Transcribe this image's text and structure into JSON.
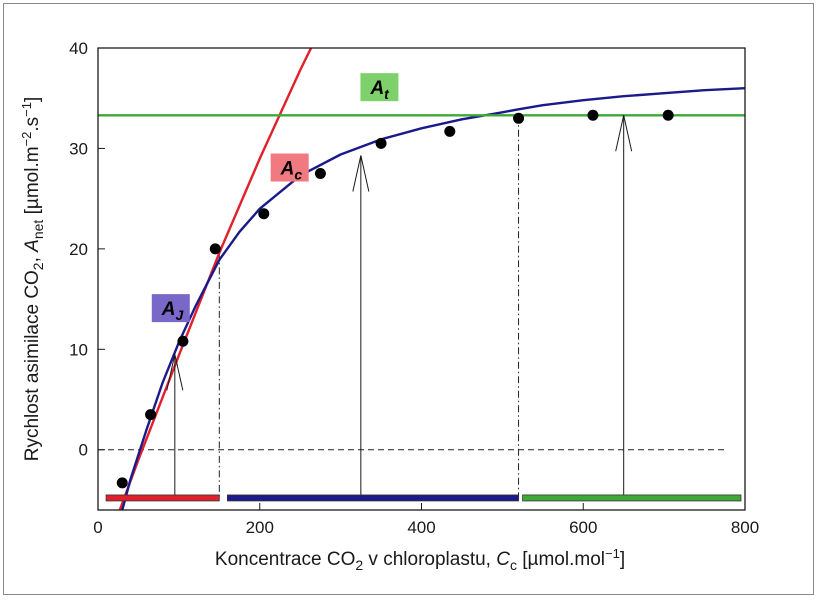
{
  "chart_data": {
    "type": "line",
    "title": "",
    "xlabel": {
      "main": "Koncentrace CO",
      "sub": "2",
      "mid": " v chloroplastu, ",
      "var": "C",
      "var_sub": "c",
      "unit": " [µmol.mol",
      "unit_sup": "−1",
      "unit_end": "]"
    },
    "ylabel": {
      "main": "Rychlost asimilace CO",
      "sub": "2",
      "mid": ", ",
      "var": "A",
      "var_sub": "net",
      "unit": " [µmol.m",
      "unit_sup1": "−2",
      "unit_mid": ".s",
      "unit_sup2": "−1",
      "unit_end": "]"
    },
    "xlim": [
      0,
      800
    ],
    "ylim": [
      -6,
      40
    ],
    "x_ticks": [
      0,
      200,
      400,
      600,
      800
    ],
    "y_ticks": [
      0,
      10,
      20,
      30,
      40
    ],
    "grid": false,
    "series": [
      {
        "name": "A_c",
        "label_main": "A",
        "label_sub": "c",
        "color": "#e0202a",
        "label_bg": "#f07a80",
        "label_at": [
          237,
          28
        ],
        "points": [
          [
            27,
            -6
          ],
          [
            50,
            -1
          ],
          [
            100,
            9.4
          ],
          [
            150,
            19.6
          ],
          [
            200,
            29
          ],
          [
            250,
            37.8
          ],
          [
            300,
            46
          ]
        ]
      },
      {
        "name": "A_J",
        "label_main": "A",
        "label_sub": "J",
        "color": "#1a1a8a",
        "label_bg": "#7a68c8",
        "label_at": [
          90,
          14
        ],
        "points": [
          [
            30,
            -6
          ],
          [
            40,
            -3
          ],
          [
            60,
            2
          ],
          [
            80,
            6.7
          ],
          [
            100,
            10.7
          ],
          [
            120,
            14.2
          ],
          [
            150,
            18.9
          ],
          [
            175,
            21.7
          ],
          [
            200,
            24
          ],
          [
            250,
            27.3
          ],
          [
            300,
            29.4
          ],
          [
            350,
            30.9
          ],
          [
            400,
            32
          ],
          [
            450,
            32.9
          ],
          [
            500,
            33.6
          ],
          [
            520,
            33.9
          ],
          [
            550,
            34.3
          ],
          [
            600,
            34.8
          ],
          [
            650,
            35.2
          ],
          [
            700,
            35.5
          ],
          [
            750,
            35.8
          ],
          [
            800,
            36
          ]
        ]
      },
      {
        "name": "A_t",
        "label_main": "A",
        "label_sub": "t",
        "color": "#3ea838",
        "label_bg": "#7ed06a",
        "label_at": [
          348,
          36
        ],
        "points": [
          [
            0,
            33.3
          ],
          [
            800,
            33.3
          ]
        ]
      }
    ],
    "measured_points": [
      [
        30,
        -3.3
      ],
      [
        65,
        3.5
      ],
      [
        105,
        10.8
      ],
      [
        145,
        20
      ],
      [
        205,
        23.5
      ],
      [
        275,
        27.5
      ],
      [
        350,
        30.5
      ],
      [
        435,
        31.7
      ],
      [
        520,
        33
      ],
      [
        612,
        33.3
      ],
      [
        705,
        33.3
      ]
    ],
    "zero_line": 0,
    "transitions": [
      150,
      520
    ],
    "arrows": [
      {
        "x": 95,
        "y_from": -4.5,
        "y_to": 9.5
      },
      {
        "x": 325,
        "y_from": -4.5,
        "y_to": 29.3
      },
      {
        "x": 650,
        "y_from": -4.5,
        "y_to": 33.3
      }
    ],
    "limitation_bars": [
      {
        "x_from": 10,
        "x_to": 150,
        "color": "#e0202a"
      },
      {
        "x_from": 160,
        "x_to": 520,
        "color": "#1a1a8a"
      },
      {
        "x_from": 525,
        "x_to": 795,
        "color": "#3ea838"
      }
    ]
  }
}
